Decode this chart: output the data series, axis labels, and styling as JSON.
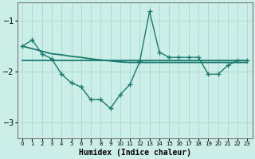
{
  "xlabel": "Humidex (Indice chaleur)",
  "bg_color": "#cceee8",
  "grid_color": "#aaddcc",
  "line_color": "#1a7a6e",
  "x": [
    0,
    1,
    2,
    3,
    4,
    5,
    6,
    7,
    8,
    9,
    10,
    11,
    12,
    13,
    14,
    15,
    16,
    17,
    18,
    19,
    20,
    21,
    22,
    23
  ],
  "line1_curvy": [
    -1.5,
    -1.38,
    -1.65,
    -1.75,
    -2.05,
    -2.22,
    -2.3,
    -2.55,
    -2.55,
    -2.72,
    -2.45,
    -2.25,
    -1.8,
    -0.82,
    -1.62,
    -1.72,
    -1.72,
    -1.72,
    -1.72,
    -2.05,
    -2.05,
    -1.88,
    -1.78,
    -1.78
  ],
  "line2_slope": [
    -1.5,
    -1.55,
    -1.6,
    -1.65,
    -1.67,
    -1.7,
    -1.72,
    -1.75,
    -1.77,
    -1.79,
    -1.81,
    -1.82,
    -1.82,
    -1.82,
    -1.82,
    -1.82,
    -1.82,
    -1.82,
    -1.82,
    -1.82,
    -1.82,
    -1.82,
    -1.82,
    -1.82
  ],
  "line3_flat": [
    -1.78,
    -1.78,
    -1.78,
    -1.78,
    -1.78,
    -1.78,
    -1.78,
    -1.78,
    -1.78,
    -1.78,
    -1.78,
    -1.78,
    -1.78,
    -1.78,
    -1.78,
    -1.78,
    -1.78,
    -1.78,
    -1.78,
    -1.78,
    -1.78,
    -1.78,
    -1.78,
    -1.78
  ],
  "ylim": [
    -3.3,
    -0.65
  ],
  "xlim": [
    -0.5,
    23.5
  ],
  "yticks": [
    -3,
    -2,
    -1
  ],
  "xticks": [
    0,
    1,
    2,
    3,
    4,
    5,
    6,
    7,
    8,
    9,
    10,
    11,
    12,
    13,
    14,
    15,
    16,
    17,
    18,
    19,
    20,
    21,
    22,
    23
  ]
}
